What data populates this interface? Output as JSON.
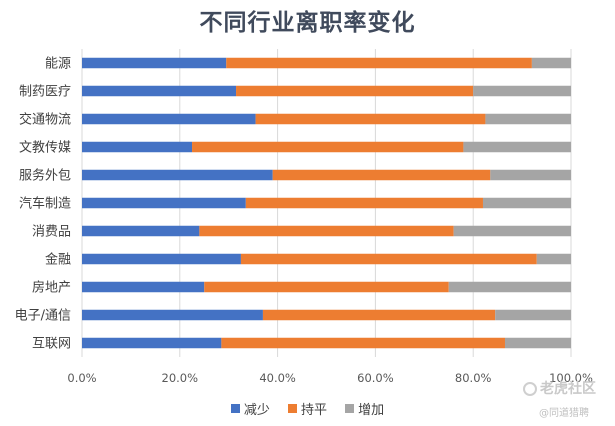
{
  "chart_data": {
    "type": "bar",
    "orientation": "horizontal",
    "stacked": "percent",
    "title": "不同行业离职率变化",
    "categories": [
      "能源",
      "制药医疗",
      "交通物流",
      "文教传媒",
      "服务外包",
      "汽车制造",
      "消费品",
      "金融",
      "房地产",
      "电子/通信",
      "互联网"
    ],
    "series": [
      {
        "name": "减少",
        "color": "#4472C4",
        "values": [
          29.5,
          31.5,
          35.5,
          22.5,
          39.0,
          33.5,
          24.0,
          32.5,
          25.0,
          37.0,
          28.5
        ]
      },
      {
        "name": "持平",
        "color": "#ED7D31",
        "values": [
          62.5,
          48.5,
          47.0,
          55.5,
          44.5,
          48.5,
          52.0,
          60.5,
          50.0,
          47.5,
          58.0
        ]
      },
      {
        "name": "增加",
        "color": "#A5A5A5",
        "values": [
          8.0,
          20.0,
          17.5,
          22.0,
          16.5,
          18.0,
          24.0,
          7.0,
          25.0,
          15.5,
          13.5
        ]
      }
    ],
    "xlim": [
      0,
      100
    ],
    "x_ticks": [
      "0.0%",
      "20.0%",
      "40.0%",
      "60.0%",
      "80.0%",
      "100.0%"
    ],
    "xlabel": "",
    "ylabel": "",
    "grid": "vertical",
    "legend_position": "bottom"
  },
  "watermark": {
    "main": "老虎社区",
    "sub": "@同道猎聘"
  }
}
